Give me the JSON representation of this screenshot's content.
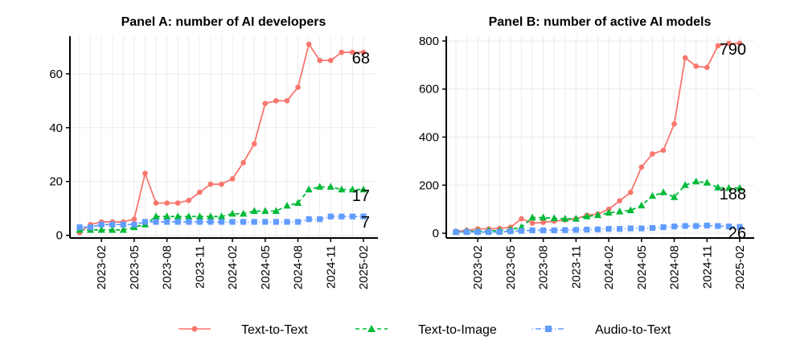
{
  "chart_data": [
    {
      "type": "line",
      "title": "Panel A: number of AI developers",
      "xlabel": "",
      "ylabel": "",
      "ylim": [
        -1,
        74
      ],
      "yticks": [
        0,
        20,
        40,
        60
      ],
      "x": [
        "2022-12",
        "2023-01",
        "2023-02",
        "2023-03",
        "2023-04",
        "2023-05",
        "2023-06",
        "2023-07",
        "2023-08",
        "2023-09",
        "2023-10",
        "2023-11",
        "2023-12",
        "2024-01",
        "2024-02",
        "2024-03",
        "2024-04",
        "2024-05",
        "2024-06",
        "2024-07",
        "2024-08",
        "2024-09",
        "2024-10",
        "2024-11",
        "2024-12",
        "2025-01",
        "2025-02"
      ],
      "xticks": [
        "2023-02",
        "2023-05",
        "2023-08",
        "2023-11",
        "2024-02",
        "2024-05",
        "2024-08",
        "2024-11",
        "2025-02"
      ],
      "grid": true,
      "series": [
        {
          "name": "Text-to-Text",
          "values": [
            1,
            4,
            5,
            5,
            5,
            6,
            23,
            12,
            12,
            12,
            13,
            16,
            19,
            19,
            21,
            27,
            34,
            49,
            50,
            50,
            55,
            71,
            65,
            65,
            68,
            68,
            68
          ],
          "end_label": "68"
        },
        {
          "name": "Text-to-Image",
          "values": [
            2,
            2,
            2,
            2,
            2,
            3,
            4,
            7,
            7,
            7,
            7,
            7,
            7,
            7,
            8,
            8,
            9,
            9,
            9,
            11,
            12,
            17,
            18,
            18,
            17,
            17,
            17
          ],
          "end_label": "17"
        },
        {
          "name": "Audio-to-Text",
          "values": [
            3,
            3,
            4,
            4,
            4,
            4,
            5,
            5,
            5,
            5,
            5,
            5,
            5,
            5,
            5,
            5,
            5,
            5,
            5,
            5,
            5,
            6,
            6,
            7,
            7,
            7,
            7
          ],
          "end_label": "7"
        }
      ]
    },
    {
      "type": "line",
      "title": "Panel B: number of active AI models",
      "xlabel": "",
      "ylabel": "",
      "ylim": [
        -20,
        820
      ],
      "yticks": [
        0,
        200,
        400,
        600,
        800
      ],
      "x": [
        "2022-12",
        "2023-01",
        "2023-02",
        "2023-03",
        "2023-04",
        "2023-05",
        "2023-06",
        "2023-07",
        "2023-08",
        "2023-09",
        "2023-10",
        "2023-11",
        "2023-12",
        "2024-01",
        "2024-02",
        "2024-03",
        "2024-04",
        "2024-05",
        "2024-06",
        "2024-07",
        "2024-08",
        "2024-09",
        "2024-10",
        "2024-11",
        "2024-12",
        "2025-01",
        "2025-02"
      ],
      "xticks": [
        "2023-02",
        "2023-05",
        "2023-08",
        "2023-11",
        "2024-02",
        "2024-05",
        "2024-08",
        "2024-11",
        "2025-02"
      ],
      "grid": true,
      "series": [
        {
          "name": "Text-to-Text",
          "values": [
            8,
            12,
            18,
            18,
            20,
            25,
            60,
            42,
            45,
            50,
            55,
            60,
            75,
            80,
            100,
            135,
            170,
            275,
            330,
            345,
            455,
            730,
            695,
            690,
            780,
            790,
            790
          ],
          "end_label": "790"
        },
        {
          "name": "Text-to-Image",
          "values": [
            5,
            8,
            8,
            10,
            10,
            15,
            25,
            65,
            65,
            62,
            60,
            60,
            70,
            75,
            85,
            90,
            95,
            115,
            155,
            170,
            150,
            200,
            215,
            210,
            190,
            188,
            188
          ],
          "end_label": "188"
        },
        {
          "name": "Audio-to-Text",
          "values": [
            5,
            5,
            5,
            5,
            5,
            8,
            10,
            12,
            12,
            12,
            13,
            14,
            15,
            16,
            18,
            18,
            20,
            20,
            22,
            25,
            28,
            30,
            30,
            32,
            30,
            28,
            26
          ],
          "end_label": "26"
        }
      ]
    }
  ],
  "legend": {
    "position": "bottom",
    "items": [
      {
        "label": "Text-to-Text",
        "color": "#F8766D",
        "marker": "circle",
        "dash": "solid"
      },
      {
        "label": "Text-to-Image",
        "color": "#00BA38",
        "marker": "triangle",
        "dash": "dashed"
      },
      {
        "label": "Audio-to-Text",
        "color": "#619CFF",
        "marker": "square",
        "dash": "dotdash"
      }
    ]
  }
}
